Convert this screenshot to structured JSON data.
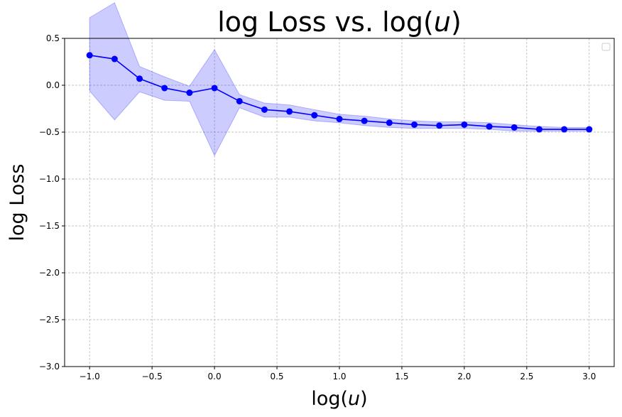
{
  "chart_data": {
    "type": "line",
    "title": "log  Loss vs. log(u)",
    "title_parts": {
      "pre": "log  Loss vs. log(",
      "var": "u",
      "post": ")"
    },
    "xlabel_parts": {
      "pre": "log(",
      "var": "u",
      "post": ")"
    },
    "ylabel": "log  Loss",
    "xlim": [
      -1.2,
      3.2
    ],
    "ylim": [
      -3.0,
      0.5
    ],
    "xticks": [
      -1.0,
      -0.5,
      0.0,
      0.5,
      1.0,
      1.5,
      2.0,
      2.5,
      3.0
    ],
    "xtick_labels": [
      "−1.0",
      "−0.5",
      "0.0",
      "0.5",
      "1.0",
      "1.5",
      "2.0",
      "2.5",
      "3.0"
    ],
    "yticks": [
      -3.0,
      -2.5,
      -2.0,
      -1.5,
      -1.0,
      -0.5,
      0.0,
      0.5
    ],
    "ytick_labels": [
      "−3.0",
      "−2.5",
      "−2.0",
      "−1.5",
      "−1.0",
      "−0.5",
      "0.0",
      "0.5"
    ],
    "grid": true,
    "legend": "top-right (empty)",
    "series": [
      {
        "color": "#0000ff",
        "band_color": "#0000ff",
        "x": [
          -1.0,
          -0.8,
          -0.6,
          -0.4,
          -0.2,
          0.0,
          0.2,
          0.4,
          0.6,
          0.8,
          1.0,
          1.2,
          1.4,
          1.6,
          1.8,
          2.0,
          2.2,
          2.4,
          2.6,
          2.8,
          3.0
        ],
        "y": [
          0.32,
          0.28,
          0.07,
          -0.03,
          -0.08,
          -0.03,
          -0.17,
          -0.26,
          -0.28,
          -0.32,
          -0.36,
          -0.38,
          -0.4,
          -0.42,
          -0.43,
          -0.42,
          -0.44,
          -0.45,
          -0.47,
          -0.47,
          -0.47
        ],
        "upper": [
          0.72,
          0.88,
          0.2,
          0.09,
          -0.01,
          0.38,
          -0.1,
          -0.19,
          -0.21,
          -0.26,
          -0.31,
          -0.33,
          -0.36,
          -0.38,
          -0.39,
          -0.39,
          -0.4,
          -0.42,
          -0.44,
          -0.45,
          -0.45
        ],
        "lower": [
          -0.06,
          -0.37,
          -0.07,
          -0.16,
          -0.17,
          -0.75,
          -0.24,
          -0.34,
          -0.34,
          -0.38,
          -0.4,
          -0.43,
          -0.45,
          -0.46,
          -0.46,
          -0.46,
          -0.47,
          -0.49,
          -0.49,
          -0.49,
          -0.49
        ]
      }
    ]
  }
}
